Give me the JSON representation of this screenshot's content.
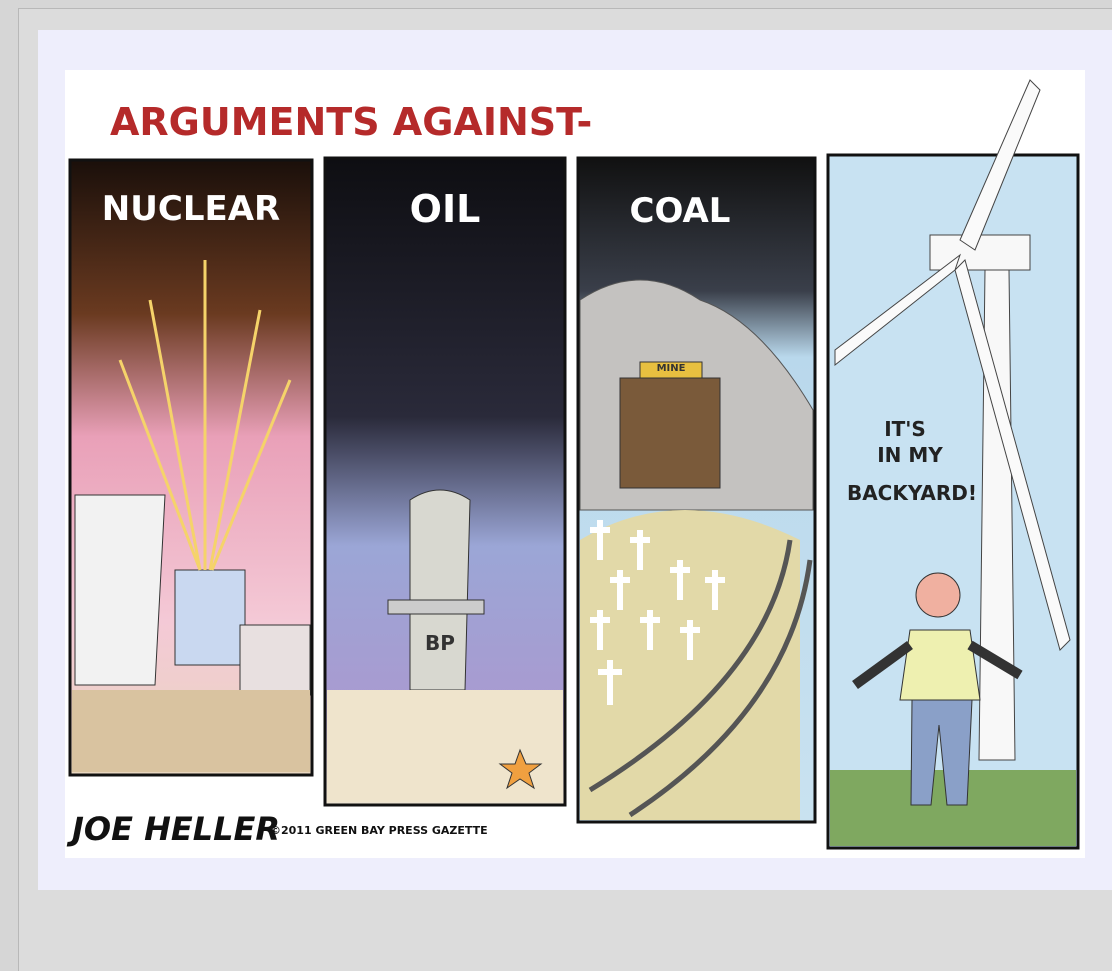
{
  "cartoon": {
    "title": "ARGUMENTS AGAINST-",
    "panels": [
      {
        "label": "NUCLEAR"
      },
      {
        "label": "OIL",
        "sign": "BP"
      },
      {
        "label": "COAL",
        "sign": "MINE"
      },
      {
        "speech": [
          "IT'S",
          "IN MY",
          "BACKYARD!"
        ]
      }
    ],
    "signature": "JOE HELLER",
    "credit": "©2011 GREEN BAY PRESS GAZETTE"
  }
}
